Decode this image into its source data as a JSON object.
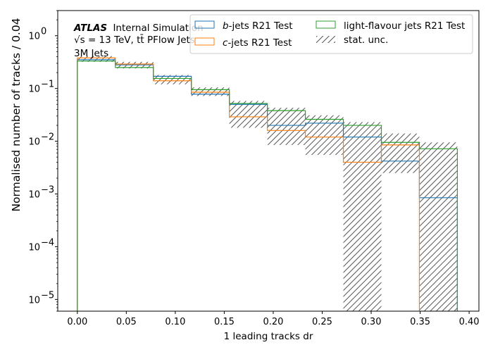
{
  "chart_data": {
    "type": "histogram-step",
    "xlabel": "1 leading tracks dr",
    "ylabel": "Normalised number of tracks / 0.04",
    "xlim": [
      -0.02,
      0.41
    ],
    "ylim": [
      6e-06,
      3.0
    ],
    "yscale": "log",
    "xticks": [
      "0.00",
      "0.05",
      "0.10",
      "0.15",
      "0.20",
      "0.25",
      "0.30",
      "0.35",
      "0.40"
    ],
    "xtick_values": [
      0,
      0.05,
      0.1,
      0.15,
      0.2,
      0.25,
      0.3,
      0.35,
      0.4
    ],
    "yticks": [
      {
        "value": 1e-05,
        "label_base": "10",
        "label_exp": "−5"
      },
      {
        "value": 0.0001,
        "label_base": "10",
        "label_exp": "−4"
      },
      {
        "value": 0.001,
        "label_base": "10",
        "label_exp": "−3"
      },
      {
        "value": 0.01,
        "label_base": "10",
        "label_exp": "−2"
      },
      {
        "value": 0.1,
        "label_base": "10",
        "label_exp": "−1"
      },
      {
        "value": 1,
        "label_base": "10",
        "label_exp": "0"
      }
    ],
    "bin_edges": [
      0.0,
      0.0388,
      0.0776,
      0.1164,
      0.1552,
      0.194,
      0.2328,
      0.2716,
      0.3104,
      0.3492,
      0.388
    ],
    "series": [
      {
        "name": "b-jets R21 Test",
        "color": "#1f77b4",
        "values": [
          0.35,
          0.28,
          0.17,
          0.078,
          0.05,
          0.02,
          0.022,
          0.012,
          0.0042,
          0.00085
        ]
      },
      {
        "name": "c-jets R21 Test",
        "color": "#ff7f0e",
        "values": [
          0.38,
          0.29,
          0.14,
          0.085,
          0.029,
          0.016,
          0.012,
          0.004,
          0.0085,
          0.0
        ]
      },
      {
        "name": "light-flavour jets R21 Test",
        "color": "#2ca02c",
        "values": [
          0.33,
          0.25,
          0.155,
          0.095,
          0.052,
          0.038,
          0.026,
          0.02,
          0.0095,
          0.0072
        ]
      }
    ],
    "stat_unc": {
      "name": "stat. unc.",
      "color": "#555555",
      "low": [
        0.32,
        0.24,
        0.12,
        0.072,
        0.018,
        0.0085,
        0.0055,
        1e-07,
        0.0025,
        1e-07
      ],
      "high": [
        0.41,
        0.32,
        0.18,
        0.105,
        0.058,
        0.043,
        0.031,
        0.023,
        0.014,
        0.0095
      ]
    },
    "annotations": {
      "atlas": "ATLAS",
      "atlas_suffix": "Internal Simulation",
      "line2_prefix": "√s",
      "line2_rest": " = 13 TeV, tt̄ PFlow Jets",
      "line3": "3M Jets"
    },
    "legend": {
      "placement": "top-right",
      "entries": [
        {
          "series": 0,
          "prefix": "b",
          "label": "-jets R21 Test"
        },
        {
          "series": 1,
          "prefix": "c",
          "label": "-jets R21 Test"
        },
        {
          "series": 2,
          "prefix": "",
          "label": "light-flavour jets R21 Test"
        },
        {
          "series": -1,
          "prefix": "",
          "label": "stat. unc."
        }
      ]
    }
  }
}
